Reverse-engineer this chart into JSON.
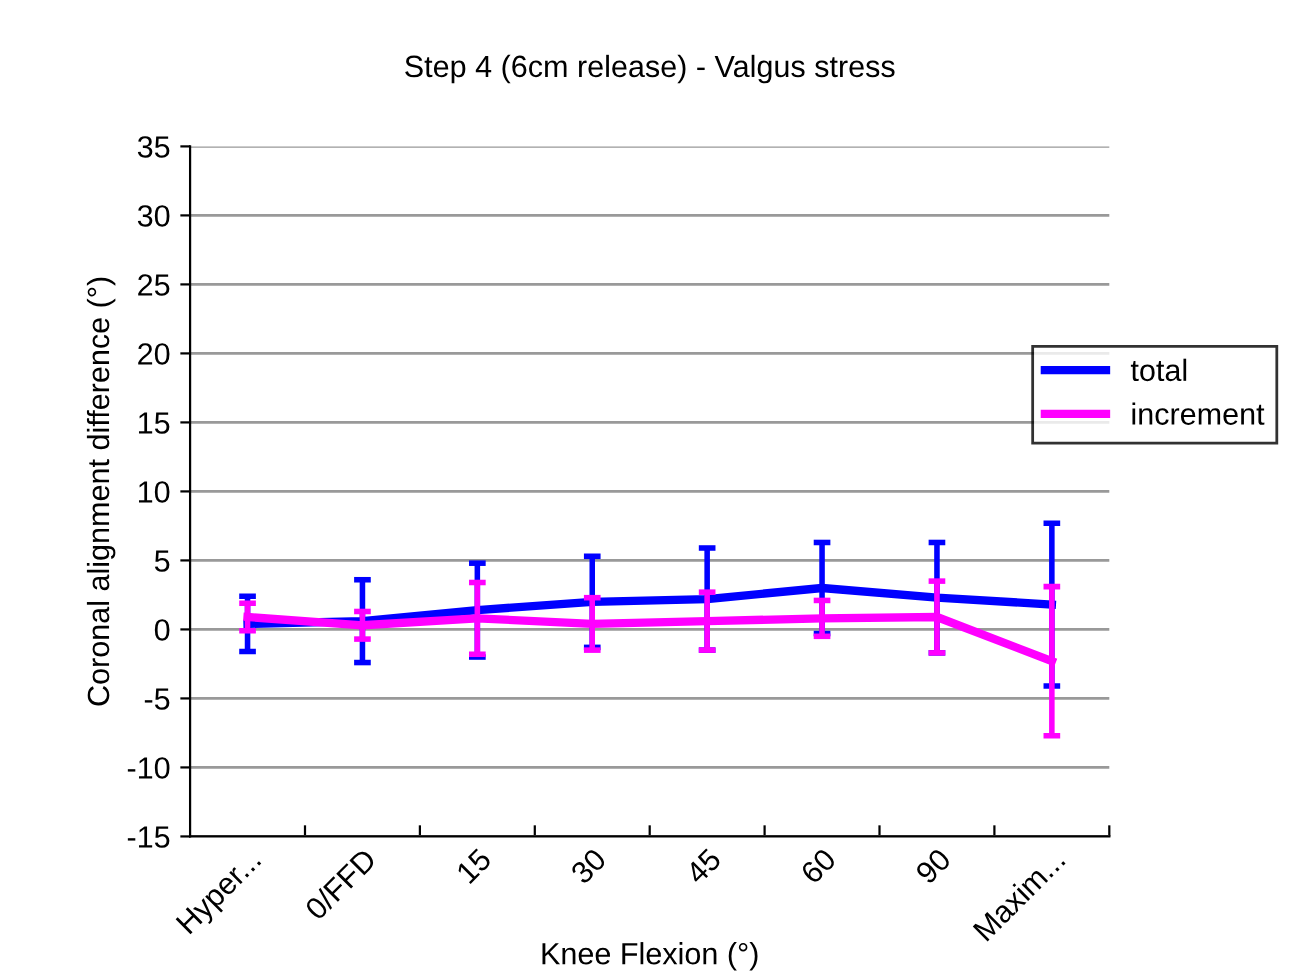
{
  "chart_data": {
    "type": "line",
    "title": "Step 4 (6cm release) - Valgus stress",
    "xlabel": "Knee Flexion (°)",
    "ylabel": "Coronal alignment difference (°)",
    "categories": [
      "Hyper...",
      "0/FFD",
      "15",
      "30",
      "45",
      "60",
      "90",
      "Maxim..."
    ],
    "series": [
      {
        "name": "total",
        "color": "#0000ff",
        "values": [
          0.4,
          0.6,
          1.4,
          2.0,
          2.2,
          3.0,
          2.3,
          1.8
        ],
        "errors": [
          2.0,
          3.0,
          3.4,
          3.3,
          3.7,
          3.3,
          4.0,
          5.9
        ]
      },
      {
        "name": "increment",
        "color": "#ff00ff",
        "values": [
          0.9,
          0.3,
          0.8,
          0.4,
          0.6,
          0.8,
          0.9,
          -2.3
        ],
        "errors": [
          1.0,
          1.0,
          2.6,
          1.9,
          2.1,
          1.3,
          2.6,
          5.4
        ]
      }
    ],
    "ylim": [
      -15,
      35
    ],
    "yticks": [
      -15,
      -10,
      -5,
      0,
      5,
      10,
      15,
      20,
      25,
      30,
      35
    ],
    "grid": "y",
    "legend": "right",
    "marker": "none",
    "line_style": "solid"
  }
}
